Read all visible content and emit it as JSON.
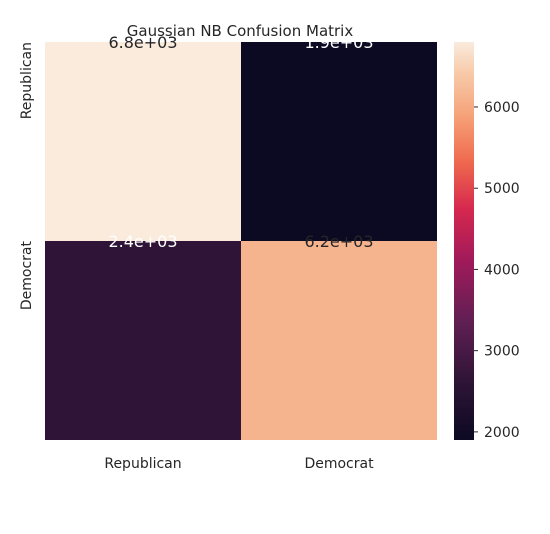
{
  "chart_data": {
    "type": "heatmap",
    "title": "Gaussian NB Confusion Matrix",
    "x_categories": [
      "Republican",
      "Democrat"
    ],
    "y_categories": [
      "Republican",
      "Democrat"
    ],
    "values": [
      [
        6800,
        1900
      ],
      [
        2400,
        6200
      ]
    ],
    "annotations": [
      [
        "6.8e+03",
        "1.9e+03"
      ],
      [
        "2.4e+03",
        "6.2e+03"
      ]
    ],
    "colorbar": {
      "min": 1900,
      "max": 6800,
      "ticks": [
        2000,
        3000,
        4000,
        5000,
        6000
      ],
      "tick_labels": [
        "2000",
        "3000",
        "4000",
        "5000",
        "6000"
      ],
      "colormap": "rocket"
    },
    "colors": {
      "cell_00": "#faebdd",
      "cell_01": "#0c0a22",
      "cell_10": "#2f1437",
      "cell_11": "#f6b48e"
    },
    "grid": false
  }
}
